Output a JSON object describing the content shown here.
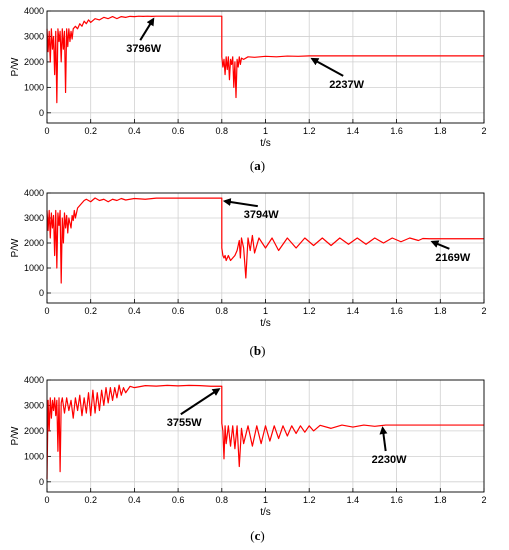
{
  "chart_data": [
    {
      "type": "line",
      "caption_letter": "a",
      "xlabel": "t/s",
      "ylabel": "P/W",
      "xlim": [
        0,
        2
      ],
      "ylim": [
        -400,
        4000
      ],
      "xticks": [
        "0",
        "0.2",
        "0.4",
        "0.6",
        "0.8",
        "1",
        "1.2",
        "1.4",
        "1.6",
        "1.8",
        "2"
      ],
      "yticks": [
        "0",
        "1000",
        "2000",
        "3000",
        "4000"
      ],
      "grid": true,
      "color": "#ff0000",
      "series": [
        {
          "x": [
            0,
            0.005,
            0.01,
            0.015,
            0.02,
            0.025,
            0.03,
            0.035,
            0.04,
            0.045,
            0.05,
            0.055,
            0.06,
            0.065,
            0.07,
            0.075,
            0.08,
            0.085,
            0.09,
            0.095,
            0.1,
            0.105,
            0.11,
            0.115,
            0.12,
            0.13,
            0.14,
            0.15,
            0.16,
            0.17,
            0.18,
            0.19,
            0.2,
            0.22,
            0.24,
            0.26,
            0.28,
            0.3,
            0.32,
            0.34,
            0.36,
            0.38,
            0.4,
            0.42,
            0.44,
            0.46,
            0.48,
            0.5,
            0.55,
            0.6,
            0.65,
            0.7,
            0.75,
            0.8,
            0.8,
            0.805,
            0.81,
            0.815,
            0.82,
            0.825,
            0.83,
            0.835,
            0.84,
            0.845,
            0.85,
            0.855,
            0.86,
            0.865,
            0.87,
            0.875,
            0.88,
            0.885,
            0.89,
            0.9,
            0.92,
            0.95,
            1.0,
            1.05,
            1.1,
            1.15,
            1.2,
            1.3,
            1.4,
            1.5,
            1.6,
            1.7,
            1.8,
            1.9,
            2.0
          ],
          "y": [
            3300,
            2400,
            3200,
            2000,
            3300,
            2500,
            3000,
            1500,
            3200,
            400,
            3300,
            2800,
            3200,
            2000,
            3300,
            2500,
            3200,
            800,
            3300,
            2600,
            3300,
            2800,
            3200,
            2900,
            3300,
            3400,
            3300,
            3500,
            3400,
            3600,
            3500,
            3650,
            3550,
            3700,
            3650,
            3750,
            3700,
            3780,
            3700,
            3780,
            3750,
            3790,
            3780,
            3796,
            3790,
            3796,
            3790,
            3796,
            3796,
            3796,
            3796,
            3796,
            3796,
            3796,
            2200,
            1800,
            2100,
            1500,
            2200,
            1700,
            2200,
            1300,
            2100,
            1900,
            2200,
            1000,
            2000,
            600,
            2100,
            1800,
            2200,
            1900,
            2150,
            2100,
            2200,
            2180,
            2220,
            2200,
            2230,
            2220,
            2237,
            2237,
            2237,
            2237,
            2237,
            2237,
            2237,
            2237,
            2237
          ]
        }
      ],
      "annotations": [
        {
          "text": "3796W",
          "x": 0.5,
          "y": 3796
        },
        {
          "text": "2237W",
          "x": 1.2,
          "y": 2237
        }
      ]
    },
    {
      "type": "line",
      "caption_letter": "b",
      "xlabel": "t/s",
      "ylabel": "P/W",
      "xlim": [
        0,
        2
      ],
      "ylim": [
        -400,
        4000
      ],
      "xticks": [
        "0",
        "0.2",
        "0.4",
        "0.6",
        "0.8",
        "1",
        "1.2",
        "1.4",
        "1.6",
        "1.8",
        "2"
      ],
      "yticks": [
        "0",
        "1000",
        "2000",
        "3000",
        "4000"
      ],
      "grid": true,
      "color": "#ff0000",
      "series": [
        {
          "x": [
            0,
            0.005,
            0.01,
            0.015,
            0.02,
            0.025,
            0.03,
            0.035,
            0.04,
            0.045,
            0.05,
            0.055,
            0.06,
            0.065,
            0.07,
            0.075,
            0.08,
            0.085,
            0.09,
            0.095,
            0.1,
            0.105,
            0.11,
            0.115,
            0.12,
            0.125,
            0.13,
            0.14,
            0.15,
            0.16,
            0.17,
            0.18,
            0.2,
            0.22,
            0.24,
            0.26,
            0.28,
            0.3,
            0.32,
            0.34,
            0.36,
            0.4,
            0.45,
            0.5,
            0.6,
            0.7,
            0.8,
            0.8,
            0.805,
            0.81,
            0.815,
            0.82,
            0.83,
            0.84,
            0.85,
            0.86,
            0.87,
            0.88,
            0.885,
            0.89,
            0.9,
            0.91,
            0.92,
            0.93,
            0.94,
            0.95,
            0.97,
            1.0,
            1.03,
            1.06,
            1.1,
            1.14,
            1.18,
            1.22,
            1.26,
            1.3,
            1.34,
            1.38,
            1.42,
            1.46,
            1.5,
            1.54,
            1.58,
            1.62,
            1.66,
            1.7,
            1.72,
            1.75,
            1.8,
            1.9,
            2.0
          ],
          "y": [
            3300,
            2500,
            3300,
            2200,
            3200,
            2600,
            3100,
            1500,
            3300,
            1000,
            3200,
            2700,
            3300,
            400,
            3000,
            2000,
            3200,
            2600,
            3100,
            2400,
            3000,
            2800,
            2600,
            3100,
            2900,
            3300,
            3000,
            3400,
            3500,
            3600,
            3700,
            3750,
            3650,
            3800,
            3700,
            3750,
            3650,
            3750,
            3700,
            3780,
            3720,
            3780,
            3750,
            3794,
            3794,
            3794,
            3794,
            1800,
            1500,
            1400,
            1500,
            1300,
            1500,
            1300,
            1400,
            1500,
            1700,
            2100,
            1400,
            2200,
            1800,
            600,
            2200,
            1700,
            2300,
            1600,
            2200,
            1800,
            2200,
            1700,
            2200,
            1800,
            2200,
            1900,
            2200,
            1900,
            2200,
            1950,
            2200,
            1950,
            2200,
            2000,
            2200,
            2050,
            2200,
            2100,
            2180,
            2169,
            2169,
            2169,
            2169
          ]
        }
      ],
      "annotations": [
        {
          "text": "3794W",
          "x": 0.8,
          "y": 3794
        },
        {
          "text": "2169W",
          "x": 1.75,
          "y": 2169
        }
      ]
    },
    {
      "type": "line",
      "caption_letter": "c",
      "xlabel": "t/s",
      "ylabel": "P/W",
      "xlim": [
        0,
        2
      ],
      "ylim": [
        -400,
        4000
      ],
      "xticks": [
        "0",
        "0.2",
        "0.4",
        "0.6",
        "0.8",
        "1",
        "1.2",
        "1.4",
        "1.6",
        "1.8",
        "2"
      ],
      "yticks": [
        "0",
        "1000",
        "2000",
        "3000",
        "4000"
      ],
      "grid": true,
      "color": "#ff0000",
      "series": [
        {
          "x": [
            0,
            0.005,
            0.01,
            0.015,
            0.02,
            0.025,
            0.03,
            0.035,
            0.04,
            0.045,
            0.05,
            0.055,
            0.06,
            0.065,
            0.07,
            0.08,
            0.09,
            0.1,
            0.11,
            0.12,
            0.13,
            0.14,
            0.15,
            0.16,
            0.17,
            0.18,
            0.19,
            0.2,
            0.21,
            0.22,
            0.23,
            0.24,
            0.25,
            0.26,
            0.27,
            0.28,
            0.29,
            0.3,
            0.31,
            0.32,
            0.33,
            0.34,
            0.35,
            0.36,
            0.38,
            0.4,
            0.45,
            0.5,
            0.55,
            0.6,
            0.65,
            0.7,
            0.75,
            0.8,
            0.8,
            0.805,
            0.81,
            0.815,
            0.82,
            0.83,
            0.84,
            0.85,
            0.86,
            0.87,
            0.88,
            0.89,
            0.9,
            0.92,
            0.94,
            0.96,
            0.98,
            1.0,
            1.02,
            1.04,
            1.06,
            1.08,
            1.1,
            1.12,
            1.14,
            1.16,
            1.18,
            1.2,
            1.22,
            1.25,
            1.3,
            1.35,
            1.4,
            1.45,
            1.5,
            1.55,
            1.6,
            1.7,
            1.8,
            1.9,
            2.0
          ],
          "y": [
            100,
            3200,
            2000,
            3300,
            2500,
            3200,
            2800,
            3300,
            2600,
            3200,
            1200,
            3300,
            400,
            3100,
            3300,
            2700,
            3300,
            2800,
            3200,
            2500,
            3300,
            2800,
            3400,
            2600,
            3300,
            2700,
            3500,
            2600,
            3600,
            2700,
            3500,
            2800,
            3600,
            3000,
            3700,
            3100,
            3700,
            3200,
            3700,
            3300,
            3800,
            3400,
            3700,
            3500,
            3750,
            3700,
            3780,
            3760,
            3790,
            3770,
            3790,
            3780,
            3755,
            3755,
            2300,
            2000,
            900,
            2200,
            1500,
            2200,
            1400,
            2200,
            1300,
            2200,
            600,
            2100,
            1500,
            2200,
            1400,
            2200,
            1500,
            2200,
            1600,
            2200,
            1700,
            2200,
            1800,
            2200,
            1900,
            2200,
            1950,
            2200,
            2000,
            2220,
            2100,
            2230,
            2150,
            2230,
            2180,
            2230,
            2230,
            2230,
            2230,
            2230,
            2230
          ]
        }
      ],
      "annotations": [
        {
          "text": "3755W",
          "x": 0.8,
          "y": 3755
        },
        {
          "text": "2230W",
          "x": 1.55,
          "y": 2230
        }
      ]
    }
  ]
}
